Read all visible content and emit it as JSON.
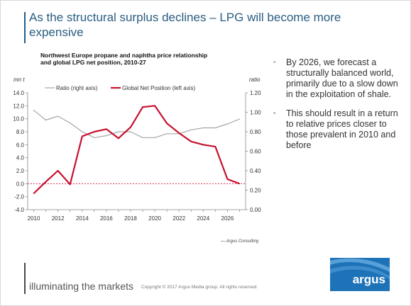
{
  "slide": {
    "title": "As the structural surplus declines – LPG will become more expensive",
    "bullets": [
      "By 2026, we forecast a structurally balanced world, primarily due to a slow down in the exploitation of shale.",
      "This should result in a return to relative prices closer to those prevalent in 2010 and before"
    ],
    "footer_tagline": "illuminating the markets",
    "copyright": "Copyright © 2017 Argus Media group. All rights reserved.",
    "logo_text": "argus",
    "colors": {
      "title": "#2a5d82",
      "net_position": "#c8102e",
      "ratio": "#a6a6a6",
      "logo_bg": "#1e73b8"
    }
  },
  "chart_data": {
    "type": "line",
    "title": "Northwest Europe propane and naphtha price relationship and global LPG net position, 2010-27",
    "ylabel_left": "mn t",
    "ylabel_right": "ratio",
    "source": "— Argus Consulting",
    "x": [
      2010,
      2011,
      2012,
      2013,
      2014,
      2015,
      2016,
      2017,
      2018,
      2019,
      2020,
      2021,
      2022,
      2023,
      2024,
      2025,
      2026,
      2027
    ],
    "x_ticks": [
      "2010",
      "2012",
      "2014",
      "2016",
      "2018",
      "2020",
      "2022",
      "2024",
      "2026"
    ],
    "x_tick_values": [
      2010,
      2012,
      2014,
      2016,
      2018,
      2020,
      2022,
      2024,
      2026
    ],
    "ylim_left": [
      -4,
      14
    ],
    "yticks_left": [
      "-4.0",
      "-2.0",
      "0.0",
      "2.0",
      "4.0",
      "6.0",
      "8.0",
      "10.0",
      "12.0",
      "14.0"
    ],
    "ylim_right": [
      0,
      1.2
    ],
    "yticks_right": [
      "0.00",
      "0.20",
      "0.40",
      "0.60",
      "0.80",
      "1.00",
      "1.20"
    ],
    "legend_position": "top",
    "series": [
      {
        "name": "Ratio (right axis)",
        "axis": "right",
        "color": "#a6a6a6",
        "values": [
          1.02,
          0.92,
          0.96,
          0.89,
          0.8,
          0.74,
          0.76,
          0.8,
          0.8,
          0.74,
          0.74,
          0.78,
          0.78,
          0.82,
          0.84,
          0.84,
          0.88,
          0.93
        ]
      },
      {
        "name": "Global Net Position (left axis)",
        "axis": "left",
        "color": "#c8102e",
        "values": [
          -1.5,
          0.3,
          2.0,
          -0.1,
          7.3,
          8.0,
          8.4,
          7.0,
          8.7,
          11.8,
          12.0,
          9.3,
          7.8,
          6.5,
          6.0,
          5.7,
          0.7,
          0.0
        ]
      }
    ],
    "reference_line": {
      "axis": "left",
      "value": 0,
      "color": "#c8102e",
      "style": "dashed"
    }
  }
}
